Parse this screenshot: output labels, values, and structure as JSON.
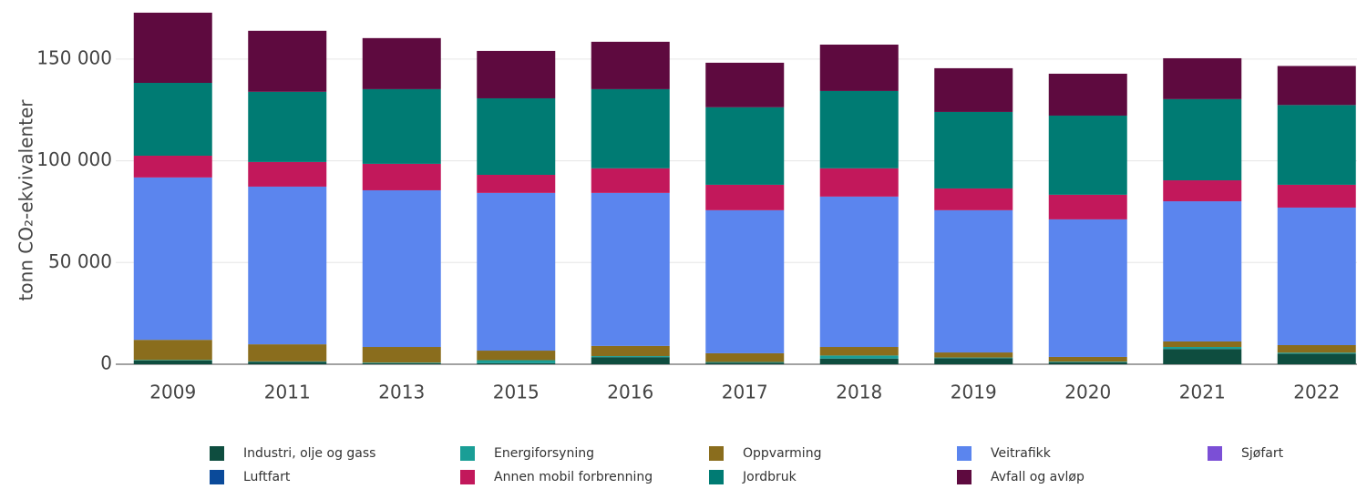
{
  "chart_data": {
    "type": "stacked_bar",
    "y_label": "tonn CO₂-ekvivalenter",
    "categories": [
      "2009",
      "2011",
      "2013",
      "2015",
      "2016",
      "2017",
      "2018",
      "2019",
      "2020",
      "2021",
      "2022"
    ],
    "series": [
      {
        "name": "Industri, olje og gass",
        "color": "#0e4d3f",
        "values": [
          1800,
          1200,
          500,
          500,
          3500,
          800,
          2800,
          3000,
          1000,
          7500,
          5200
        ]
      },
      {
        "name": "Energiforsyning",
        "color": "#1a9e96",
        "values": [
          300,
          200,
          300,
          1500,
          500,
          300,
          1500,
          300,
          300,
          1000,
          500
        ]
      },
      {
        "name": "Oppvarming",
        "color": "#8a6d1d",
        "values": [
          9900,
          8400,
          7700,
          4700,
          5000,
          4300,
          4200,
          2500,
          2300,
          2700,
          3700
        ]
      },
      {
        "name": "Veitrafikk",
        "color": "#5b85ee",
        "values": [
          79800,
          77500,
          77000,
          77500,
          75200,
          70300,
          73900,
          69900,
          67600,
          68900,
          67600
        ]
      },
      {
        "name": "Sjøfart",
        "color": "#7b4fd6",
        "values": [
          0,
          0,
          0,
          0,
          0,
          0,
          0,
          0,
          0,
          0,
          0
        ]
      },
      {
        "name": "Luftfart",
        "color": "#0a4a9a",
        "values": [
          0,
          0,
          0,
          0,
          0,
          0,
          0,
          0,
          0,
          0,
          0
        ]
      },
      {
        "name": "Annen mobil forbrenning",
        "color": "#c2185b",
        "values": [
          10700,
          12100,
          13000,
          8900,
          12100,
          12500,
          13900,
          10700,
          12100,
          10300,
          11200
        ]
      },
      {
        "name": "Jordbruk",
        "color": "#007b73",
        "values": [
          35800,
          34500,
          36700,
          37600,
          38900,
          38100,
          38000,
          37600,
          38900,
          39900,
          39200
        ]
      },
      {
        "name": "Avfall og avløp",
        "color": "#5e0a3f",
        "values": [
          34500,
          30000,
          25100,
          23300,
          23300,
          21900,
          22800,
          21500,
          20600,
          20100,
          19200
        ]
      }
    ],
    "ylim": [
      0,
      175000
    ],
    "yticks": [
      0,
      {
        "value": 50000,
        "label": "50 000"
      },
      {
        "value": 100000,
        "label": "100 000"
      },
      {
        "value": 150000,
        "label": "150 000"
      }
    ],
    "grid": true
  }
}
